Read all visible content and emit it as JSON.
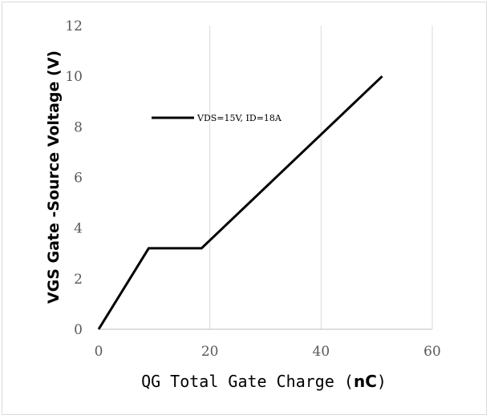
{
  "chart_data": {
    "type": "line",
    "title": "",
    "ylabel": "VGS  Gate -Source Voltage (V)",
    "xlabel_prefix": "QG Total Gate Charge (",
    "xlabel_unit": "nC",
    "xlabel_suffix": ")",
    "xlim": [
      0,
      60
    ],
    "ylim": [
      0,
      12
    ],
    "x_ticks": [
      0,
      20,
      40,
      60
    ],
    "y_ticks": [
      0,
      2,
      4,
      6,
      8,
      10,
      12
    ],
    "grid": "vertical",
    "legend_position": "top-left",
    "series": [
      {
        "name": "VDS=15V, ID=18A",
        "color": "#000000",
        "x": [
          0,
          9,
          18.5,
          51
        ],
        "y": [
          0,
          3.2,
          3.2,
          10
        ]
      }
    ]
  }
}
